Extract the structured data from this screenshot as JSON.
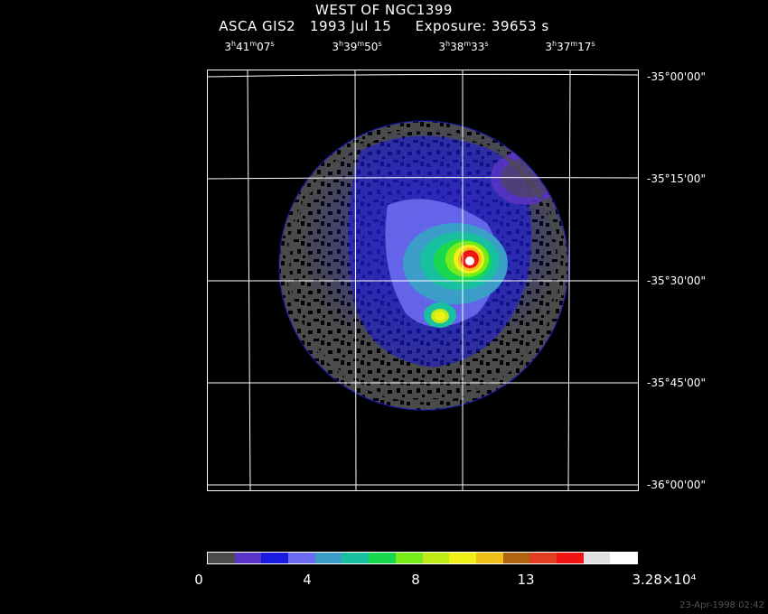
{
  "title": "WEST OF NGC1399",
  "subtitle": "ASCA GIS2   1993 Jul 15     Exposure: 39653 s",
  "ra_labels": [
    {
      "h": "3",
      "m": "41",
      "s": "07"
    },
    {
      "h": "3",
      "m": "39",
      "s": "50"
    },
    {
      "h": "3",
      "m": "38",
      "s": "33"
    },
    {
      "h": "3",
      "m": "37",
      "s": "17"
    }
  ],
  "dec_labels": [
    "-35°00'00\"",
    "-35°15'00\"",
    "-35°30'00\"",
    "-35°45'00\"",
    "-36°00'00\""
  ],
  "colorbar": {
    "colors": [
      "#4b4b4b",
      "#5a34c8",
      "#1a1ae0",
      "#6c6cf0",
      "#3a9ec8",
      "#18c0a0",
      "#18d850",
      "#78ec18",
      "#c0ec18",
      "#f0f018",
      "#f0c018",
      "#b06410",
      "#e04020",
      "#f01414",
      "#e0e0e0",
      "#ffffff"
    ],
    "labels": [
      "0",
      "4",
      "8",
      "13",
      "3.28×10⁴"
    ]
  },
  "timestamp": "23-Apr-1998 02:42"
}
